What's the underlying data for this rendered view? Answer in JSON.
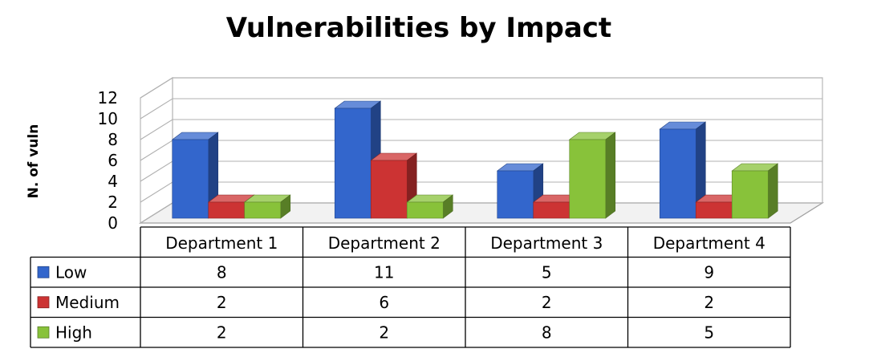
{
  "chart_data": {
    "type": "bar",
    "title": "Vulnerabilities by Impact",
    "xlabel": "",
    "ylabel": "N. of vuln",
    "categories": [
      "Department 1",
      "Department 2",
      "Department 3",
      "Department 4"
    ],
    "series": [
      {
        "name": "Low",
        "values": [
          8,
          11,
          5,
          9
        ],
        "color": "#3366cc"
      },
      {
        "name": "Medium",
        "values": [
          2,
          6,
          2,
          2
        ],
        "color": "#cc3333"
      },
      {
        "name": "High",
        "values": [
          2,
          2,
          8,
          5
        ],
        "color": "#88c23a"
      }
    ],
    "ylim": [
      0,
      12
    ],
    "yticks": [
      0,
      2,
      4,
      6,
      8,
      10,
      12
    ],
    "grid": true,
    "legend": "data-table-left",
    "data_table": true,
    "style": "3d-clustered-column"
  }
}
